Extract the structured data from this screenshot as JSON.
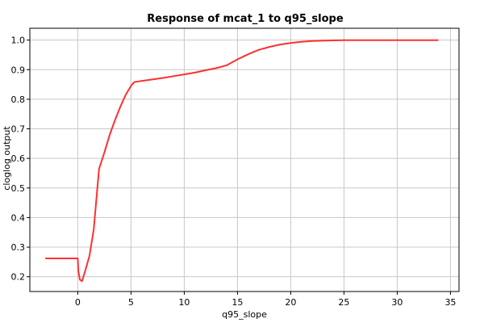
{
  "chart_data": {
    "type": "line",
    "title": "Response of mcat_1 to q95_slope",
    "xlabel": "q95_slope",
    "ylabel": "cloglog output",
    "xlim": [
      -4.5,
      35.8
    ],
    "ylim": [
      0.15,
      1.04
    ],
    "x_ticks": [
      0,
      5,
      10,
      15,
      20,
      25,
      30,
      35
    ],
    "x_tick_labels": [
      "0",
      "5",
      "10",
      "15",
      "20",
      "25",
      "30",
      "35"
    ],
    "y_ticks": [
      0.2,
      0.3,
      0.4,
      0.5,
      0.6,
      0.7,
      0.8,
      0.9,
      1.0
    ],
    "y_tick_labels": [
      "0.2",
      "0.3",
      "0.4",
      "0.5",
      "0.6",
      "0.7",
      "0.8",
      "0.9",
      "1.0"
    ],
    "grid": true,
    "legend": "none",
    "series": [
      {
        "color": "#ff3030",
        "x": [
          -3.0,
          0.0,
          0.05,
          0.2,
          0.4,
          0.7,
          1.1,
          1.5,
          2.0,
          2.5,
          3.0,
          3.5,
          4.0,
          4.5,
          5.0,
          5.3,
          6.0,
          7.0,
          8.0,
          9.0,
          10.0,
          11.0,
          12.0,
          13.0,
          14.0,
          15.0,
          16.0,
          17.0,
          18.0,
          19.0,
          20.0,
          21.0,
          22.0,
          23.0,
          24.0,
          25.0,
          28.0,
          31.0,
          33.8
        ],
        "values": [
          0.262,
          0.262,
          0.22,
          0.19,
          0.185,
          0.22,
          0.27,
          0.36,
          0.565,
          0.62,
          0.68,
          0.73,
          0.775,
          0.815,
          0.845,
          0.858,
          0.862,
          0.867,
          0.872,
          0.878,
          0.884,
          0.89,
          0.898,
          0.905,
          0.915,
          0.935,
          0.952,
          0.967,
          0.977,
          0.985,
          0.99,
          0.994,
          0.997,
          0.998,
          0.999,
          1.0,
          1.0,
          1.0,
          1.0
        ]
      }
    ]
  }
}
